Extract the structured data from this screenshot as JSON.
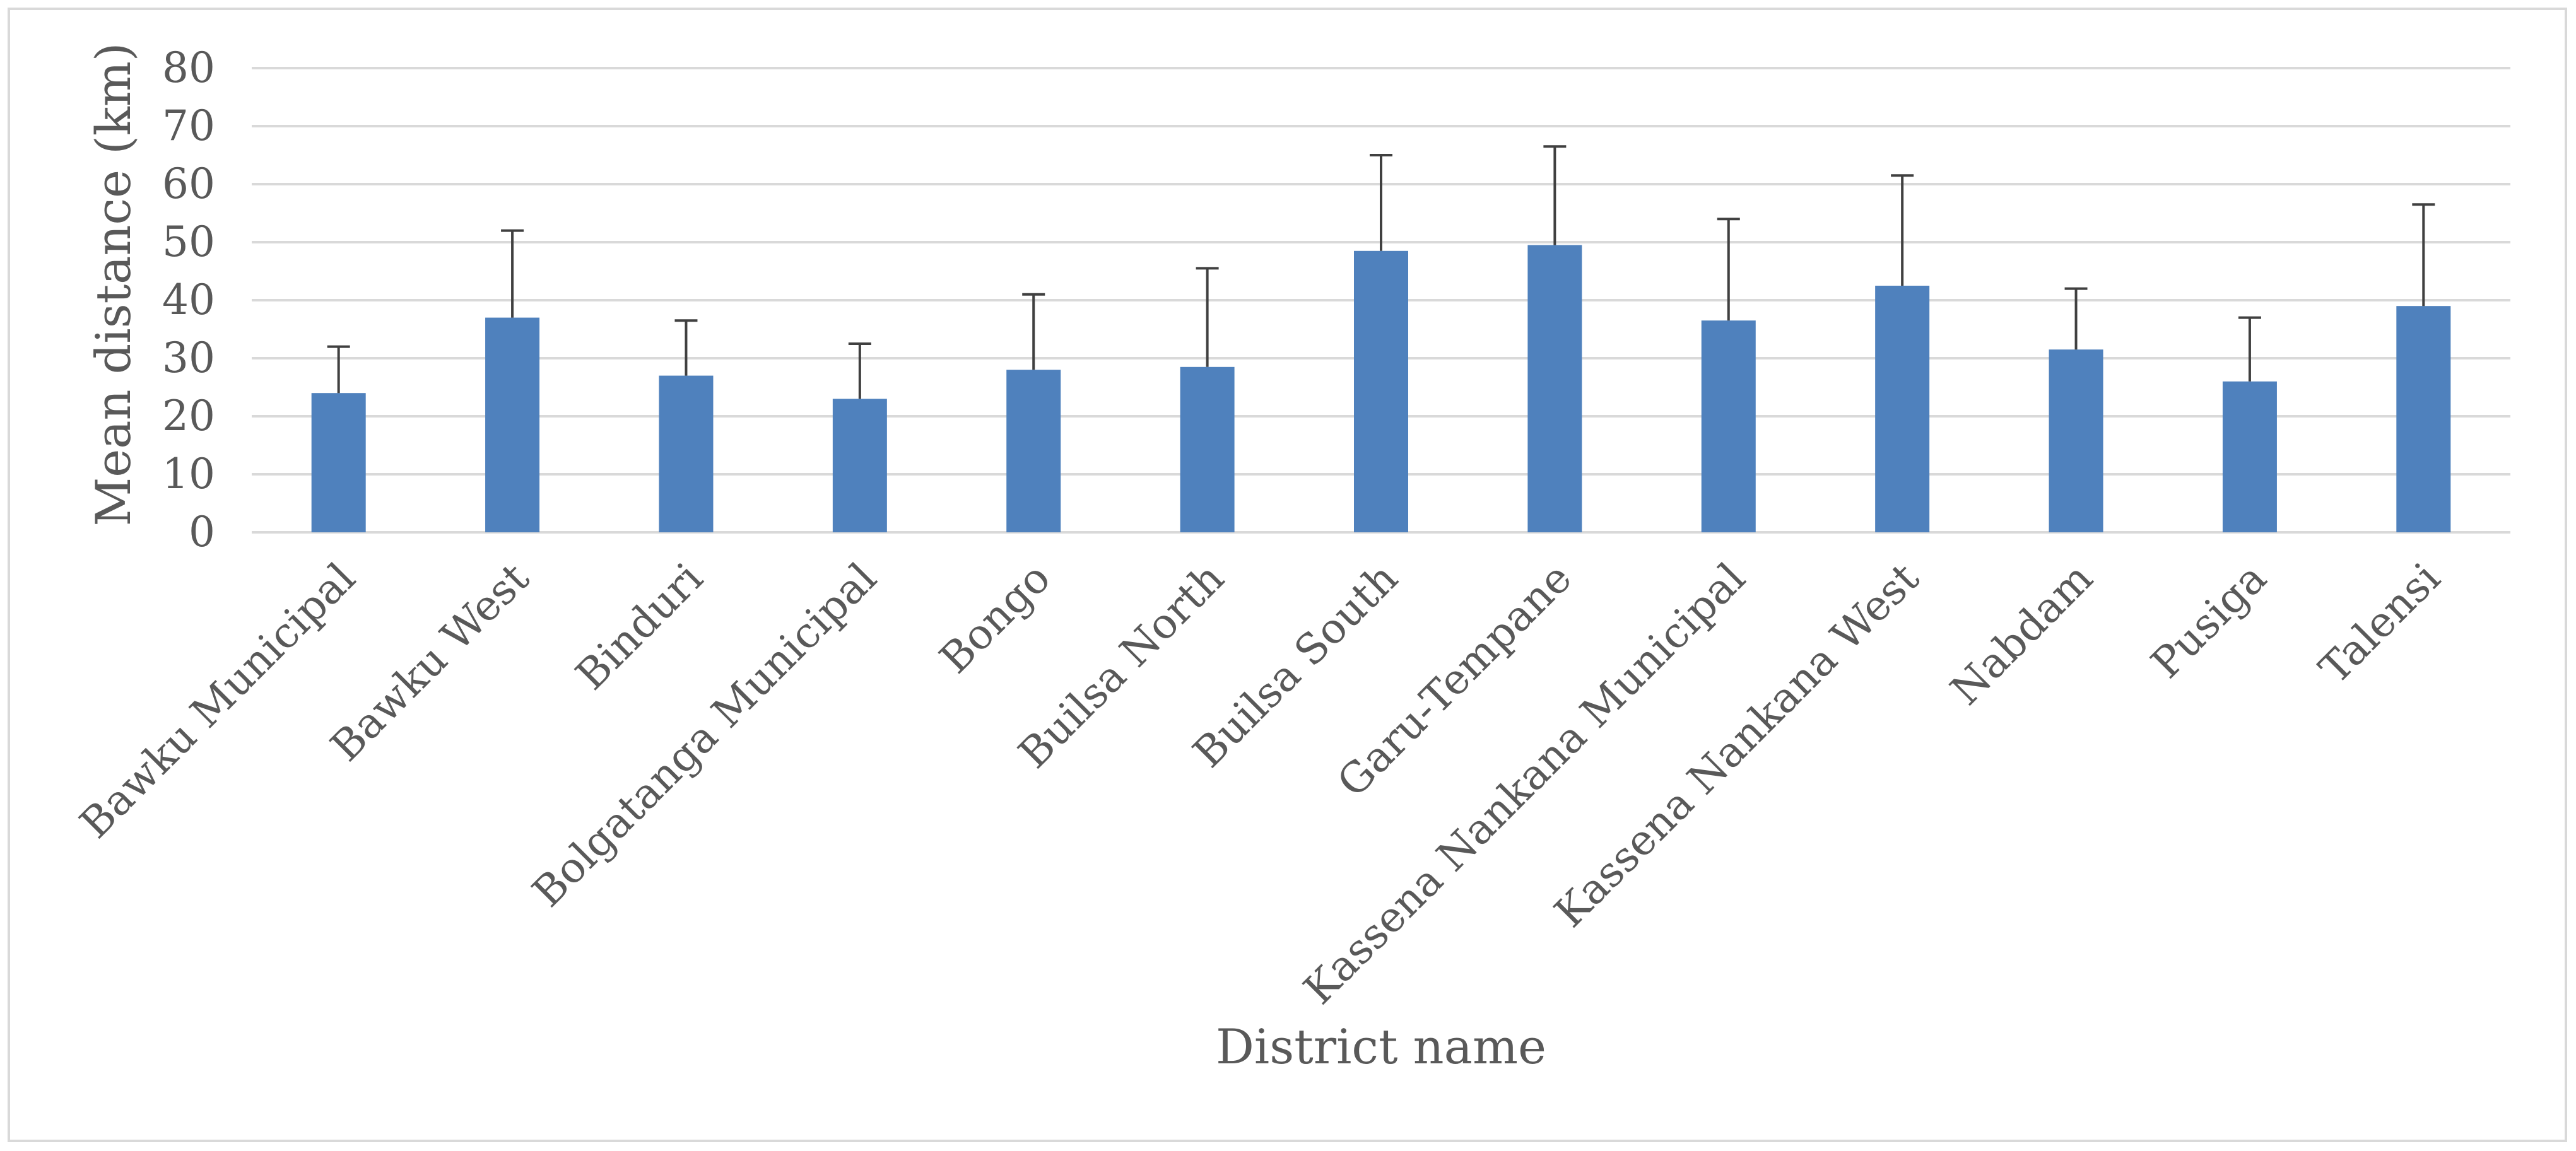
{
  "chart_data": {
    "type": "bar",
    "title": "",
    "xlabel": "District name",
    "ylabel": "Mean distance (km)",
    "ylim": [
      0,
      80
    ],
    "yticks": [
      0,
      10,
      20,
      30,
      40,
      50,
      60,
      70,
      80
    ],
    "grid": true,
    "legend": "none",
    "bar_color": "#4f81bd",
    "categories": [
      "Bawku Municipal",
      "Bawku West",
      "Binduri",
      "Bolgatanga Municipal",
      "Bongo",
      "Builsa North",
      "Builsa South",
      "Garu-Tempane",
      "Kassena Nankana Municipal",
      "Kassena Nankana West",
      "Nabdam",
      "Pusiga",
      "Talensi"
    ],
    "values": [
      24,
      37,
      27,
      23,
      28,
      28.5,
      48.5,
      49.5,
      36.5,
      42.5,
      31.5,
      26,
      39
    ],
    "error_plus": [
      8,
      15,
      9.5,
      9.5,
      13,
      17,
      16.5,
      17,
      17.5,
      19,
      10.5,
      11,
      17.5
    ]
  }
}
